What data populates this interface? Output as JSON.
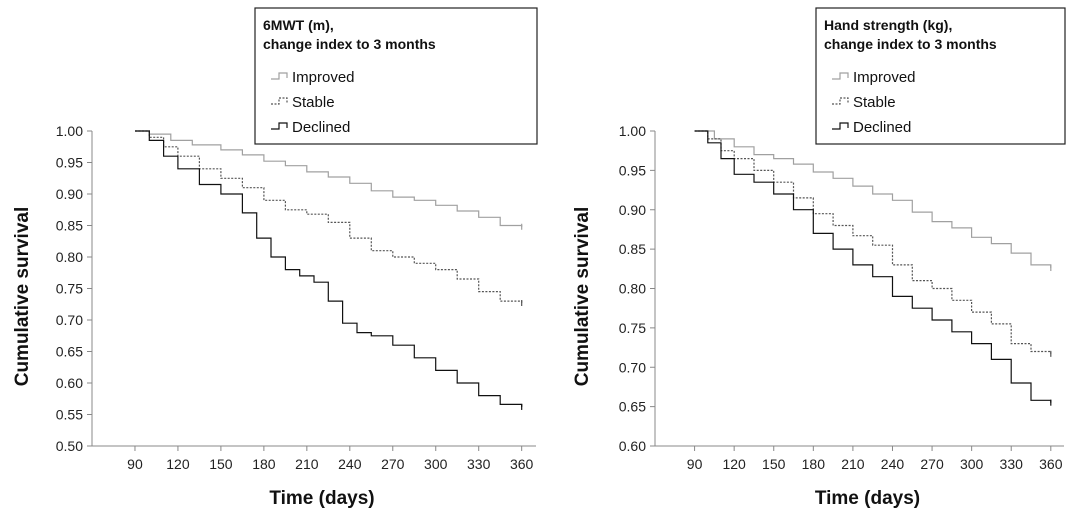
{
  "chart_data": [
    {
      "type": "line",
      "legend_title": [
        "6MWT (m),",
        "change index to 3 months"
      ],
      "xlabel": "Time (days)",
      "ylabel": "Cumulative survival",
      "xlim": [
        60,
        370
      ],
      "ylim": [
        0.5,
        1.0
      ],
      "xticks": [
        "90",
        "120",
        "150",
        "180",
        "210",
        "240",
        "270",
        "300",
        "330",
        "360"
      ],
      "yticks": [
        "0.50",
        "0.55",
        "0.60",
        "0.65",
        "0.70",
        "0.75",
        "0.80",
        "0.85",
        "0.90",
        "0.95",
        "1.00"
      ],
      "legend_placement": "top-right",
      "series": [
        {
          "name": "Improved",
          "color": "#a0a0a0",
          "dash": "solid",
          "x": [
            90,
            100,
            115,
            130,
            150,
            165,
            180,
            195,
            210,
            225,
            240,
            255,
            270,
            285,
            300,
            315,
            330,
            345,
            360
          ],
          "y": [
            1.0,
            0.995,
            0.985,
            0.978,
            0.97,
            0.962,
            0.952,
            0.945,
            0.935,
            0.927,
            0.917,
            0.905,
            0.895,
            0.89,
            0.882,
            0.873,
            0.863,
            0.85,
            0.848
          ]
        },
        {
          "name": "Stable",
          "color": "#555555",
          "dash": "dotted",
          "x": [
            90,
            100,
            110,
            120,
            135,
            150,
            165,
            180,
            195,
            210,
            225,
            240,
            255,
            270,
            285,
            300,
            315,
            330,
            345,
            360
          ],
          "y": [
            1.0,
            0.99,
            0.975,
            0.96,
            0.94,
            0.925,
            0.91,
            0.89,
            0.875,
            0.868,
            0.855,
            0.83,
            0.81,
            0.8,
            0.79,
            0.78,
            0.765,
            0.745,
            0.73,
            0.727
          ]
        },
        {
          "name": "Declined",
          "color": "#111111",
          "dash": "solid",
          "x": [
            90,
            100,
            110,
            120,
            135,
            150,
            165,
            175,
            185,
            195,
            205,
            215,
            225,
            235,
            245,
            255,
            270,
            285,
            300,
            315,
            330,
            345,
            360
          ],
          "y": [
            1.0,
            0.985,
            0.96,
            0.94,
            0.915,
            0.9,
            0.87,
            0.83,
            0.8,
            0.78,
            0.77,
            0.76,
            0.73,
            0.695,
            0.68,
            0.675,
            0.66,
            0.64,
            0.62,
            0.6,
            0.58,
            0.566,
            0.562
          ]
        }
      ]
    },
    {
      "type": "line",
      "legend_title": [
        "Hand strength (kg),",
        "change index to 3 months"
      ],
      "xlabel": "Time (days)",
      "ylabel": "Cumulative survival",
      "xlim": [
        60,
        370
      ],
      "ylim": [
        0.6,
        1.0
      ],
      "xticks": [
        "90",
        "120",
        "150",
        "180",
        "210",
        "240",
        "270",
        "300",
        "330",
        "360"
      ],
      "yticks": [
        "0.60",
        "0.65",
        "0.70",
        "0.75",
        "0.80",
        "0.85",
        "0.90",
        "0.95",
        "1.00"
      ],
      "legend_placement": "top-right",
      "series": [
        {
          "name": "Improved",
          "color": "#a0a0a0",
          "dash": "solid",
          "x": [
            90,
            105,
            120,
            135,
            150,
            165,
            180,
            195,
            210,
            225,
            240,
            255,
            270,
            285,
            300,
            315,
            330,
            345,
            360
          ],
          "y": [
            1.0,
            0.99,
            0.98,
            0.97,
            0.965,
            0.958,
            0.948,
            0.94,
            0.93,
            0.92,
            0.912,
            0.897,
            0.885,
            0.877,
            0.865,
            0.857,
            0.845,
            0.83,
            0.826
          ]
        },
        {
          "name": "Stable",
          "color": "#555555",
          "dash": "dotted",
          "x": [
            90,
            100,
            110,
            120,
            135,
            150,
            165,
            180,
            195,
            210,
            225,
            240,
            255,
            270,
            285,
            300,
            315,
            330,
            345,
            360
          ],
          "y": [
            1.0,
            0.99,
            0.975,
            0.965,
            0.95,
            0.935,
            0.915,
            0.895,
            0.88,
            0.867,
            0.855,
            0.83,
            0.81,
            0.8,
            0.785,
            0.77,
            0.755,
            0.73,
            0.72,
            0.717
          ]
        },
        {
          "name": "Declined",
          "color": "#111111",
          "dash": "solid",
          "x": [
            90,
            100,
            110,
            120,
            135,
            150,
            165,
            180,
            195,
            210,
            225,
            240,
            255,
            270,
            285,
            300,
            315,
            330,
            345,
            360
          ],
          "y": [
            1.0,
            0.985,
            0.965,
            0.945,
            0.935,
            0.92,
            0.9,
            0.87,
            0.85,
            0.83,
            0.815,
            0.79,
            0.775,
            0.76,
            0.745,
            0.73,
            0.71,
            0.68,
            0.658,
            0.655
          ]
        }
      ]
    }
  ]
}
